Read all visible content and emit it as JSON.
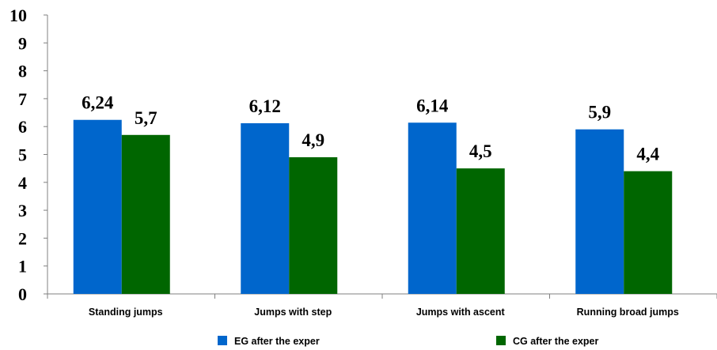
{
  "chart_data": {
    "type": "bar",
    "categories": [
      "Standing jumps",
      "Jumps with step",
      "Jumps with ascent",
      "Running broad jumps"
    ],
    "series": [
      {
        "name": "EG after the exper",
        "color": "#0066cc",
        "values": [
          6.24,
          6.12,
          6.14,
          5.9
        ],
        "labels": [
          "6,24",
          "6,12",
          "6,14",
          "5,9"
        ]
      },
      {
        "name": "CG after the exper",
        "color": "#006600",
        "values": [
          5.7,
          4.9,
          4.5,
          4.4
        ],
        "labels": [
          "5,7",
          "4,9",
          "4,5",
          "4,4"
        ]
      }
    ],
    "ylim": [
      0,
      10
    ],
    "yticks": [
      "0",
      "1",
      "2",
      "3",
      "4",
      "5",
      "6",
      "7",
      "8",
      "9",
      "10"
    ],
    "grid": false,
    "legend_position": "bottom"
  }
}
